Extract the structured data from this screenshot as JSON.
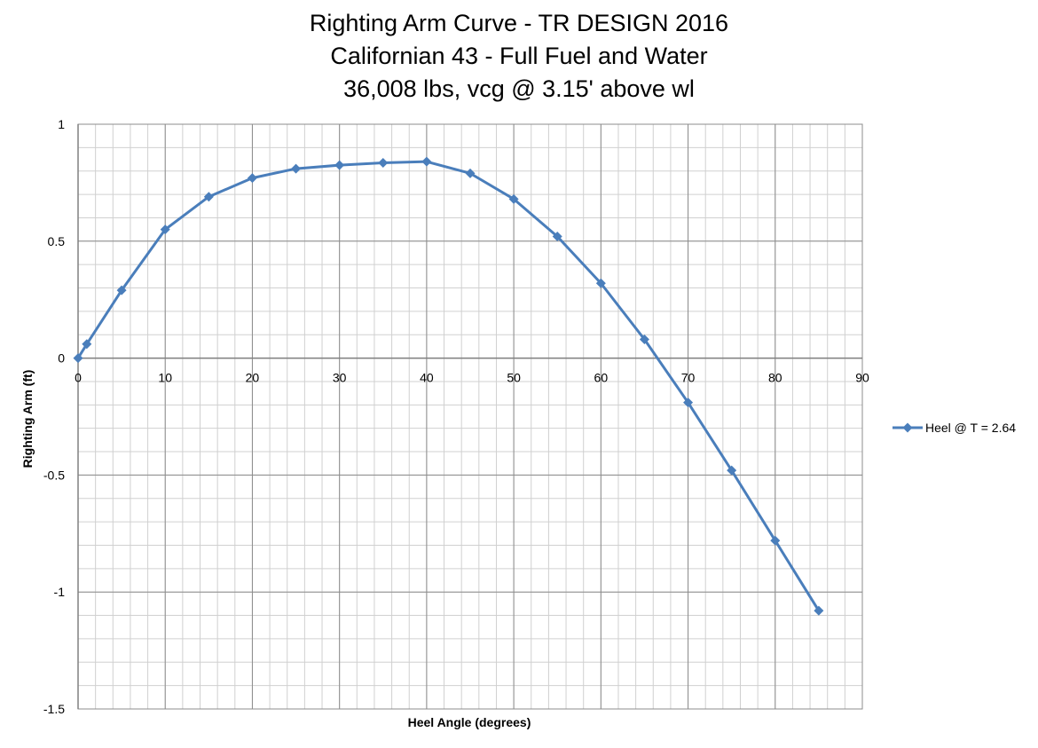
{
  "chart_data": {
    "type": "line",
    "title": [
      "Righting Arm Curve - TR DESIGN 2016",
      "Californian 43 - Full Fuel and Water",
      "36,008 lbs, vcg @ 3.15' above wl"
    ],
    "xlabel": "Heel Angle (degrees)",
    "ylabel": "Righting Arm (ft)",
    "xlim": [
      0,
      90
    ],
    "ylim": [
      -1.5,
      1
    ],
    "x_ticks": [
      0,
      10,
      20,
      30,
      40,
      50,
      60,
      70,
      80,
      90
    ],
    "y_ticks": [
      1,
      0.5,
      0,
      -0.5,
      -1,
      -1.5
    ],
    "x_tick_labels": [
      "0",
      "10",
      "20",
      "30",
      "40",
      "50",
      "60",
      "70",
      "80",
      "90"
    ],
    "y_tick_labels": [
      "1",
      "0.5",
      "0",
      "-0.5",
      "-1",
      "-1.5"
    ],
    "grid": true,
    "minor_grid": true,
    "legend_position": "right",
    "series": [
      {
        "name": "Heel @ T = 2.64",
        "color": "#4a7ebb",
        "marker": "diamond",
        "x": [
          0,
          1,
          5,
          10,
          15,
          20,
          25,
          30,
          35,
          40,
          45,
          50,
          55,
          60,
          65,
          70,
          75,
          80,
          85
        ],
        "y": [
          0,
          0.06,
          0.29,
          0.55,
          0.69,
          0.77,
          0.81,
          0.825,
          0.835,
          0.84,
          0.79,
          0.68,
          0.52,
          0.32,
          0.08,
          -0.19,
          -0.48,
          -0.78,
          -1.08
        ]
      }
    ]
  }
}
